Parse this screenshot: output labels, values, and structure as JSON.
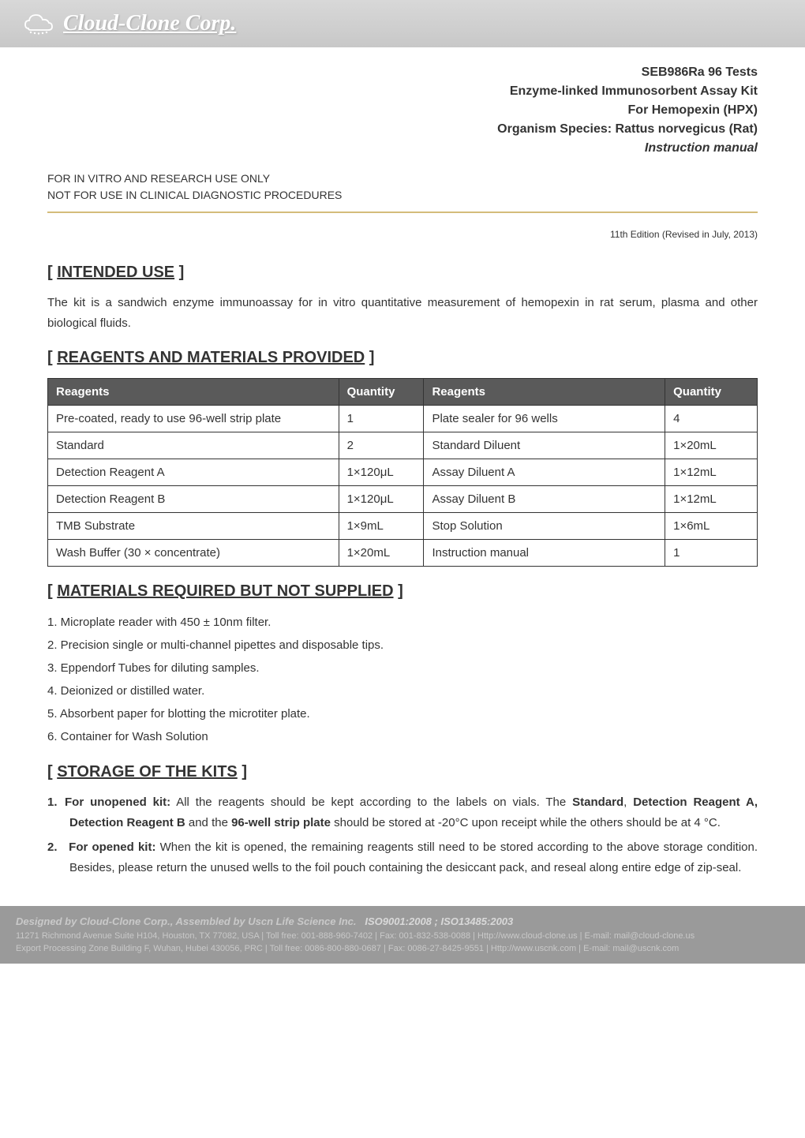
{
  "header": {
    "company_name": "Cloud-Clone Corp.",
    "logo_bg": "#d0d0d0",
    "logo_text_color": "#ffffff"
  },
  "product": {
    "code": "SEB986Ra  96  Tests",
    "kit_name": "Enzyme-linked Immunosorbent Assay Kit",
    "for_line": "For Hemopexin (HPX)",
    "species": "Organism Species: Rattus norvegicus (Rat)",
    "manual": "Instruction manual"
  },
  "restriction": {
    "line1": "FOR IN VITRO AND RESEARCH USE ONLY",
    "line2": "NOT FOR USE IN CLINICAL DIAGNOSTIC PROCEDURES"
  },
  "edition": "11th Edition (Revised in July, 2013)",
  "sections": {
    "intended_use": {
      "title": "INTENDED USE",
      "body": "The kit is a sandwich enzyme immunoassay for in vitro quantitative measurement of hemopexin in rat serum, plasma and other biological fluids."
    },
    "reagents": {
      "title": "REAGENTS AND MATERIALS PROVIDED",
      "columns": [
        "Reagents",
        "Quantity",
        "Reagents",
        "Quantity"
      ],
      "col_widths": [
        "41%",
        "12%",
        "34%",
        "13%"
      ],
      "rows": [
        [
          "Pre-coated, ready to use 96-well strip plate",
          "1",
          "Plate sealer for 96 wells",
          "4"
        ],
        [
          "Standard",
          "2",
          "Standard Diluent",
          "1×20mL"
        ],
        [
          "Detection Reagent A",
          "1×120μL",
          "Assay Diluent A",
          "1×12mL"
        ],
        [
          "Detection Reagent B",
          "1×120μL",
          "Assay Diluent B",
          "1×12mL"
        ],
        [
          "TMB Substrate",
          "1×9mL",
          "Stop Solution",
          "1×6mL"
        ],
        [
          "Wash Buffer (30 × concentrate)",
          "1×20mL",
          "Instruction manual",
          "1"
        ]
      ],
      "header_bg": "#5a5a5a",
      "header_color": "#ffffff",
      "border_color": "#333333"
    },
    "materials_required": {
      "title": "MATERIALS REQUIRED BUT NOT SUPPLIED",
      "items": [
        "1. Microplate reader with 450 ± 10nm filter.",
        "2. Precision single or multi-channel pipettes and disposable tips.",
        "3. Eppendorf Tubes for diluting samples.",
        "4. Deionized or distilled water.",
        "5. Absorbent paper for blotting the microtiter plate.",
        "6. Container for Wash Solution"
      ]
    },
    "storage": {
      "title": "STORAGE OF THE KITS",
      "items": [
        {
          "num": "1.",
          "lead_bold": "For unopened kit:",
          "pre": " All the reagents should be kept according to the labels on vials. The ",
          "bold2": "Standard",
          "mid1": ", ",
          "bold3": "Detection Reagent A, Detection Reagent B",
          "mid2": " and the ",
          "bold4": "96-well strip plate",
          "post": " should be stored at -20°C upon receipt while the others should be at 4 °C."
        },
        {
          "num": "2.",
          "lead_bold": " For opened kit:",
          "pre": " When the kit is opened, the remaining reagents still need to be stored according to the above storage condition. Besides, please return the unused wells to the foil pouch containing the desiccant pack, and reseal along entire edge of zip-seal.",
          "bold2": "",
          "mid1": "",
          "bold3": "",
          "mid2": "",
          "bold4": "",
          "post": ""
        }
      ]
    }
  },
  "footer": {
    "line1_left": "Designed by Cloud-Clone Corp., Assembled by Uscn Life Science Inc.",
    "line1_right": "ISO9001:2008 ; ISO13485:2003",
    "line2": "11271 Richmond Avenue Suite H104, Houston, TX 77082, USA | Toll free: 001-888-960-7402 | Fax: 001-832-538-0088 | Http://www.cloud-clone.us | E-mail: mail@cloud-clone.us",
    "line3": "Export Processing Zone Building F, Wuhan, Hubei 430056, PRC | Toll free: 0086-800-880-0687 | Fax: 0086-27-8425-9551 | Http://www.uscnk.com | E-mail: mail@uscnk.com"
  },
  "colors": {
    "divider": "#d4bc7a",
    "text": "#333333",
    "footer_bg": "#9a9a9a",
    "footer_text": "#c9c9c9"
  }
}
